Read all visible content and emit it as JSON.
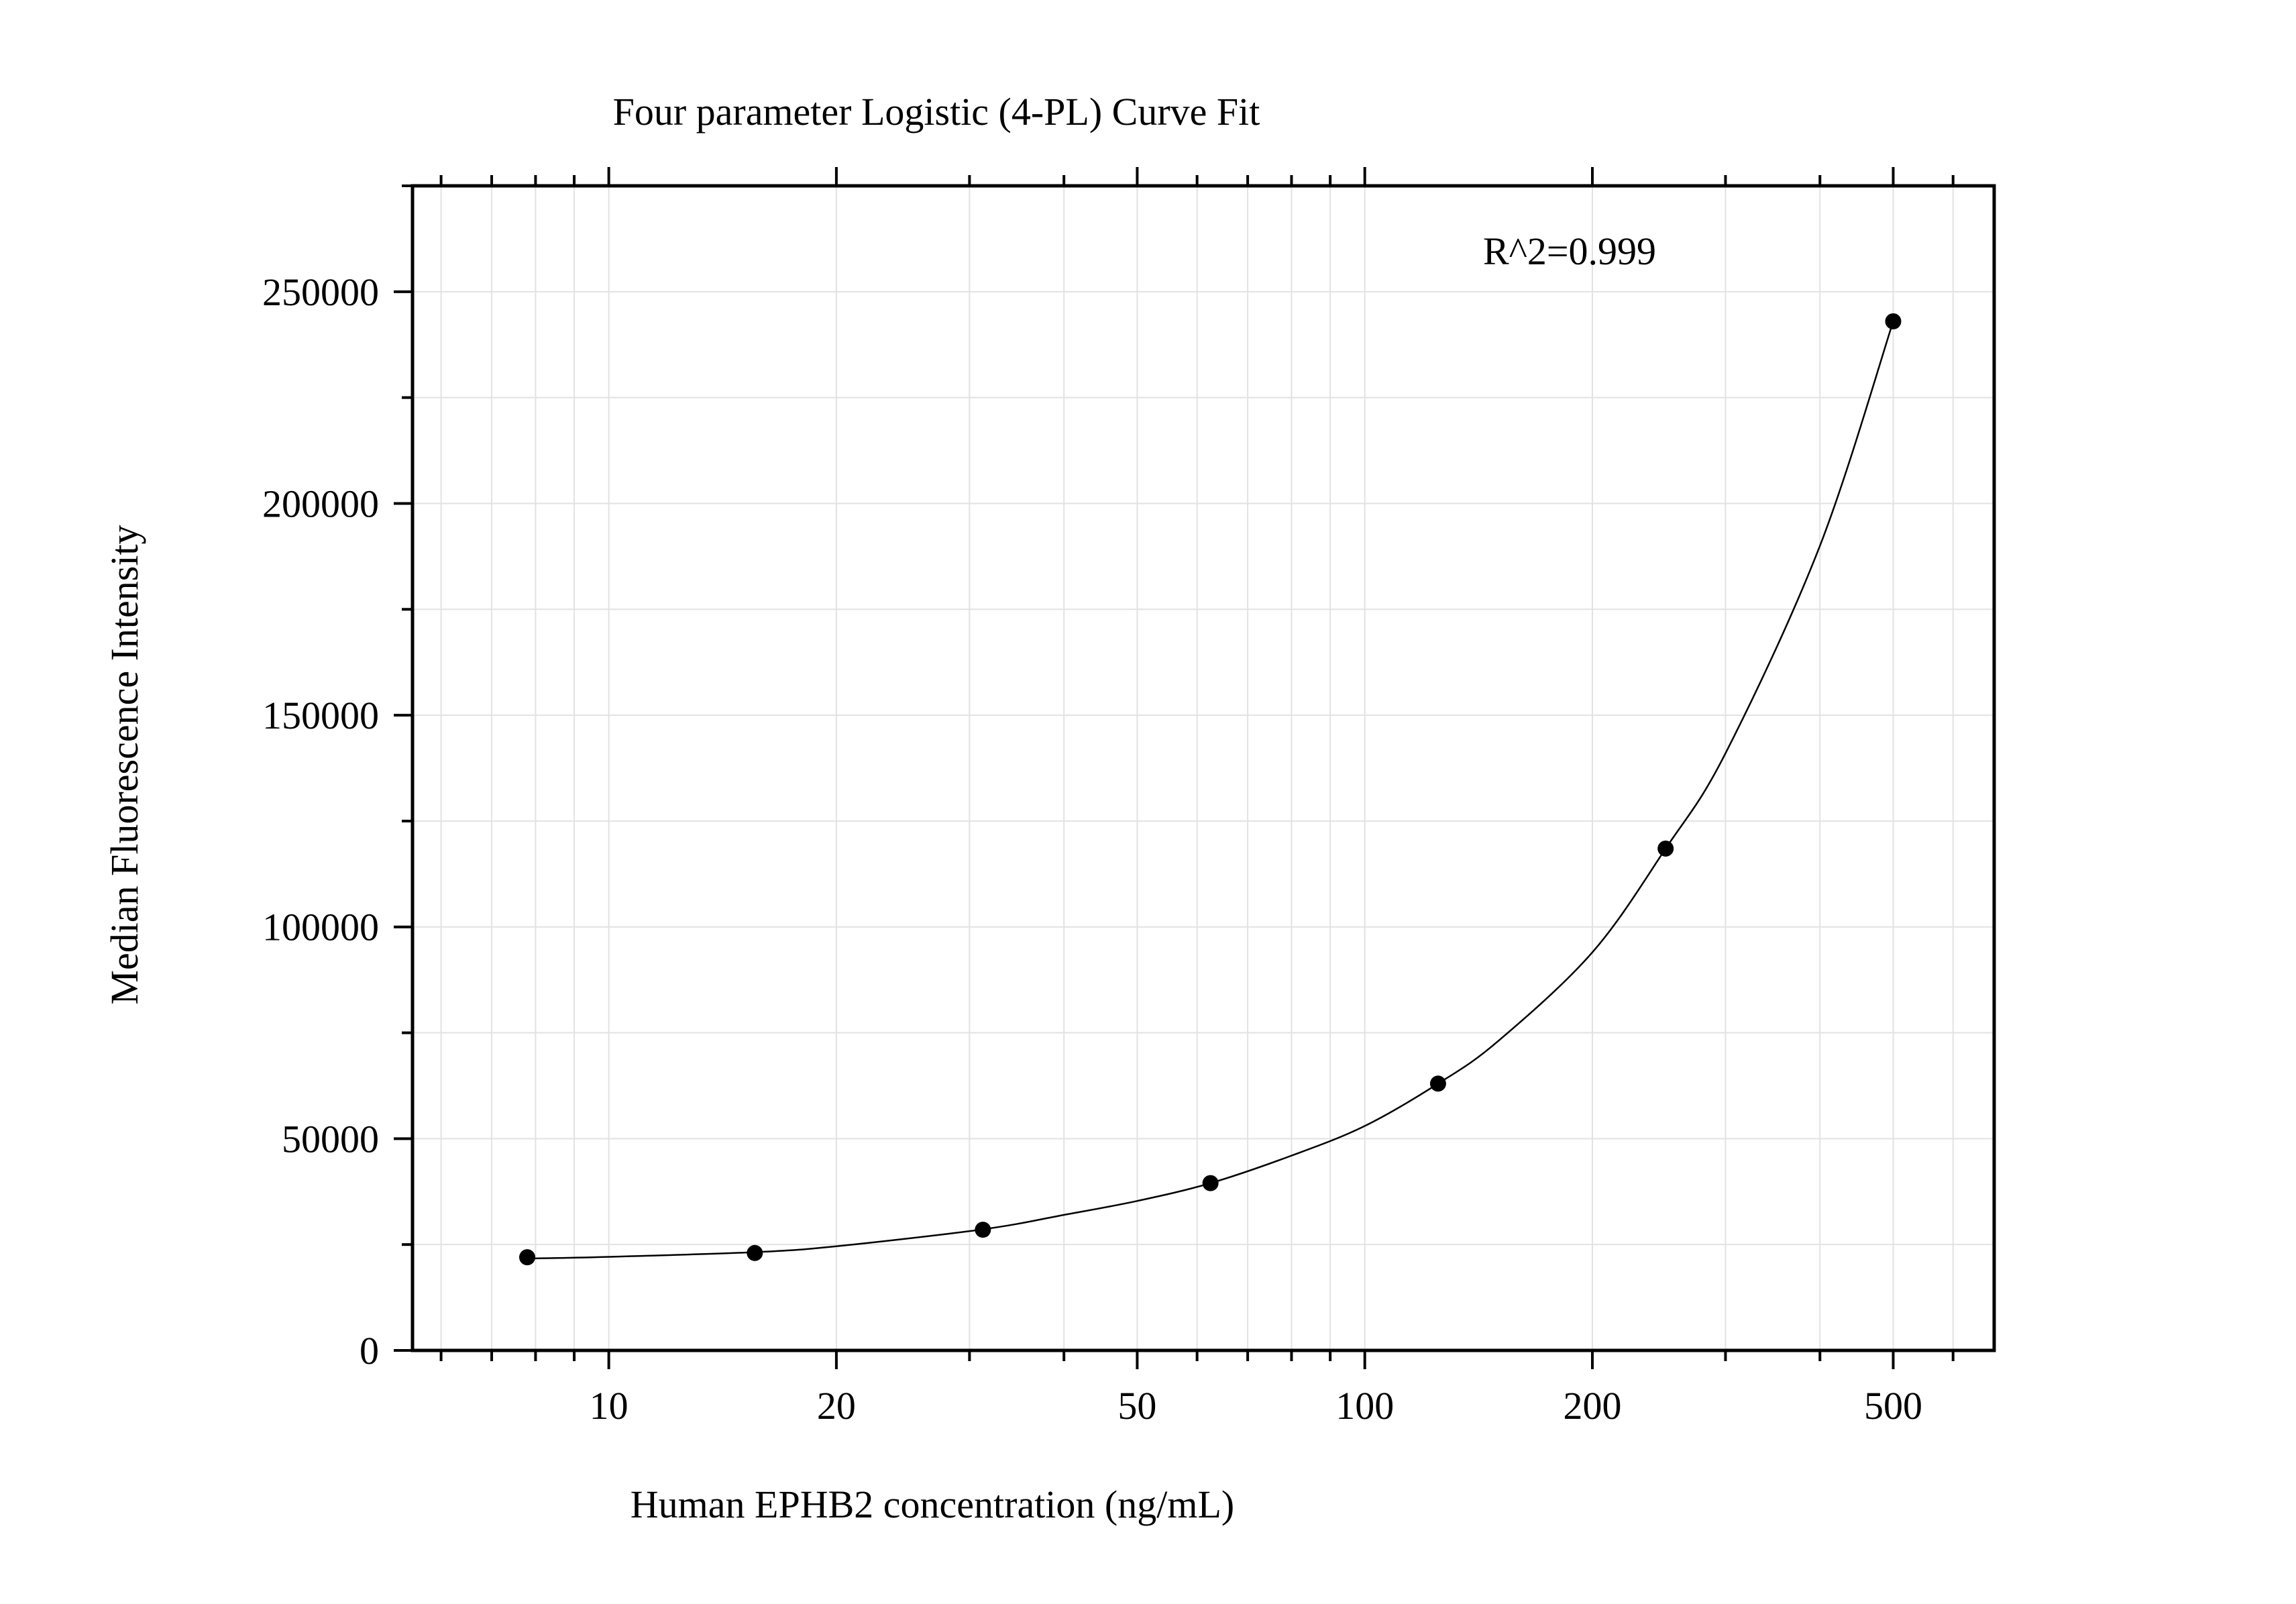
{
  "chart_data": {
    "type": "scatter",
    "title": "Four parameter Logistic (4-PL) Curve Fit",
    "xlabel": "Human EPHB2 concentration (ng/mL)",
    "ylabel": "Median Fluorescence Intensity",
    "annotation": "R^2=0.999",
    "x_scale": "log",
    "xlim": [
      5.5,
      680
    ],
    "ylim": [
      0,
      275000
    ],
    "x_ticks": [
      {
        "value": 10,
        "label": "10"
      },
      {
        "value": 20,
        "label": "20"
      },
      {
        "value": 50,
        "label": "50"
      },
      {
        "value": 100,
        "label": "100"
      },
      {
        "value": 200,
        "label": "200"
      },
      {
        "value": 500,
        "label": "500"
      }
    ],
    "y_ticks": [
      {
        "value": 0,
        "label": "0"
      },
      {
        "value": 50000,
        "label": "50000"
      },
      {
        "value": 100000,
        "label": "100000"
      },
      {
        "value": 150000,
        "label": "150000"
      },
      {
        "value": 200000,
        "label": "200000"
      },
      {
        "value": 250000,
        "label": "250000"
      }
    ],
    "grid": true,
    "legend": "none",
    "points": {
      "x": [
        7.8,
        15.6,
        31.25,
        62.5,
        125,
        250,
        500
      ],
      "y": [
        22000,
        23000,
        28500,
        39500,
        63000,
        118500,
        243000
      ]
    },
    "fit_curve": {
      "x": [
        7.8,
        10,
        15.6,
        20,
        31.25,
        40,
        50,
        62.5,
        80,
        100,
        125,
        150,
        200,
        250,
        300,
        400,
        500
      ],
      "y": [
        21700,
        22100,
        23200,
        24600,
        28600,
        32000,
        35300,
        39500,
        46000,
        53000,
        63000,
        73000,
        94000,
        118500,
        141000,
        190000,
        243000
      ]
    },
    "colors": {
      "points": "#000000",
      "curve": "#000000",
      "grid": "#e2e2e2",
      "axes": "#000000"
    }
  }
}
